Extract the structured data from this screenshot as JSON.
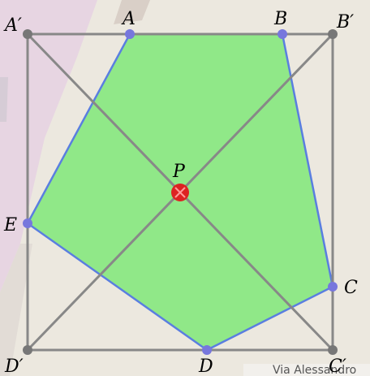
{
  "diagram": {
    "labels": {
      "A_prime": "A′",
      "A": "A",
      "B": "B",
      "B_prime": "B′",
      "P": "P",
      "E": "E",
      "C": "C",
      "D_prime": "D′",
      "D": "D",
      "C_prime": "C′"
    },
    "map_text": "Via Alessandro",
    "colors": {
      "polygon_fill": "#90e888",
      "polygon_stroke": "#5a7ee0",
      "vertex_fill": "#7777dd",
      "square_stroke": "#888888",
      "corner_fill": "#777777",
      "center_fill": "#dd2222",
      "map_background": "#ece8df",
      "map_pink_area": "#e7d5e2",
      "map_road": "#d9cfc7"
    }
  }
}
